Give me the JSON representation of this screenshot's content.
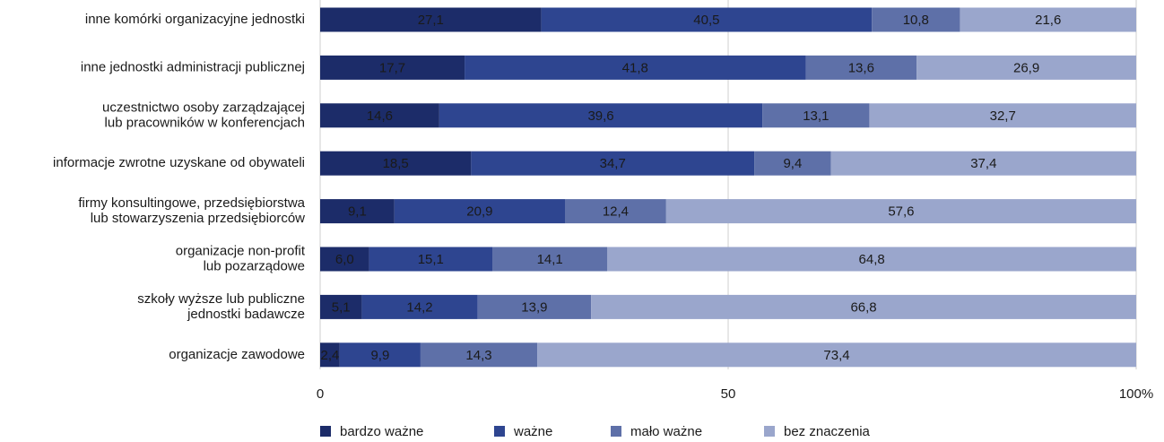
{
  "chart_data": {
    "type": "stacked_barh",
    "categories": [
      [
        "inne komórki organizacyjne jednostki"
      ],
      [
        "inne jednostki administracji publicznej"
      ],
      [
        "uczestnictwo osoby zarządzającej",
        "lub pracowników w konferencjach"
      ],
      [
        "informacje zwrotne uzyskane od obywateli"
      ],
      [
        "firmy konsultingowe, przedsiębiorstwa",
        "lub stowarzyszenia przedsiębiorców"
      ],
      [
        "organizacje non-profit",
        "lub pozarządowe"
      ],
      [
        "szkoły wyższe lub publiczne",
        "jednostki badawcze"
      ],
      [
        "organizacje zawodowe"
      ]
    ],
    "series": [
      {
        "name": "bardzo ważne",
        "color": "#1c2c69",
        "values": [
          27.1,
          17.7,
          14.6,
          18.5,
          9.1,
          6.0,
          5.1,
          2.4
        ],
        "value_labels": [
          "27,1",
          "17,7",
          "14,6",
          "18,5",
          "9,1",
          "6,0",
          "5,1",
          "2,4"
        ]
      },
      {
        "name": "ważne",
        "color": "#2e4590",
        "values": [
          40.5,
          41.8,
          39.6,
          34.7,
          20.9,
          15.1,
          14.2,
          9.9
        ],
        "value_labels": [
          "40,5",
          "41,8",
          "39,6",
          "34,7",
          "20,9",
          "15,1",
          "14,2",
          "9,9"
        ]
      },
      {
        "name": "mało ważne",
        "color": "#5e70a8",
        "values": [
          10.8,
          13.6,
          13.1,
          9.4,
          12.4,
          14.1,
          13.9,
          14.3
        ],
        "value_labels": [
          "10,8",
          "13,6",
          "13,1",
          "9,4",
          "12,4",
          "14,1",
          "13,9",
          "14,3"
        ]
      },
      {
        "name": "bez znaczenia",
        "color": "#9aa6cc",
        "values": [
          21.6,
          26.9,
          32.7,
          37.4,
          57.6,
          64.8,
          66.8,
          73.4
        ],
        "value_labels": [
          "21,6",
          "26,9",
          "32,7",
          "37,4",
          "57,6",
          "64,8",
          "66,8",
          "73,4"
        ]
      }
    ],
    "xlim": [
      0,
      100
    ],
    "xticks": [
      0,
      50,
      {
        "value": 100,
        "label": "100%"
      }
    ],
    "grid": true,
    "legend": "bottom"
  }
}
